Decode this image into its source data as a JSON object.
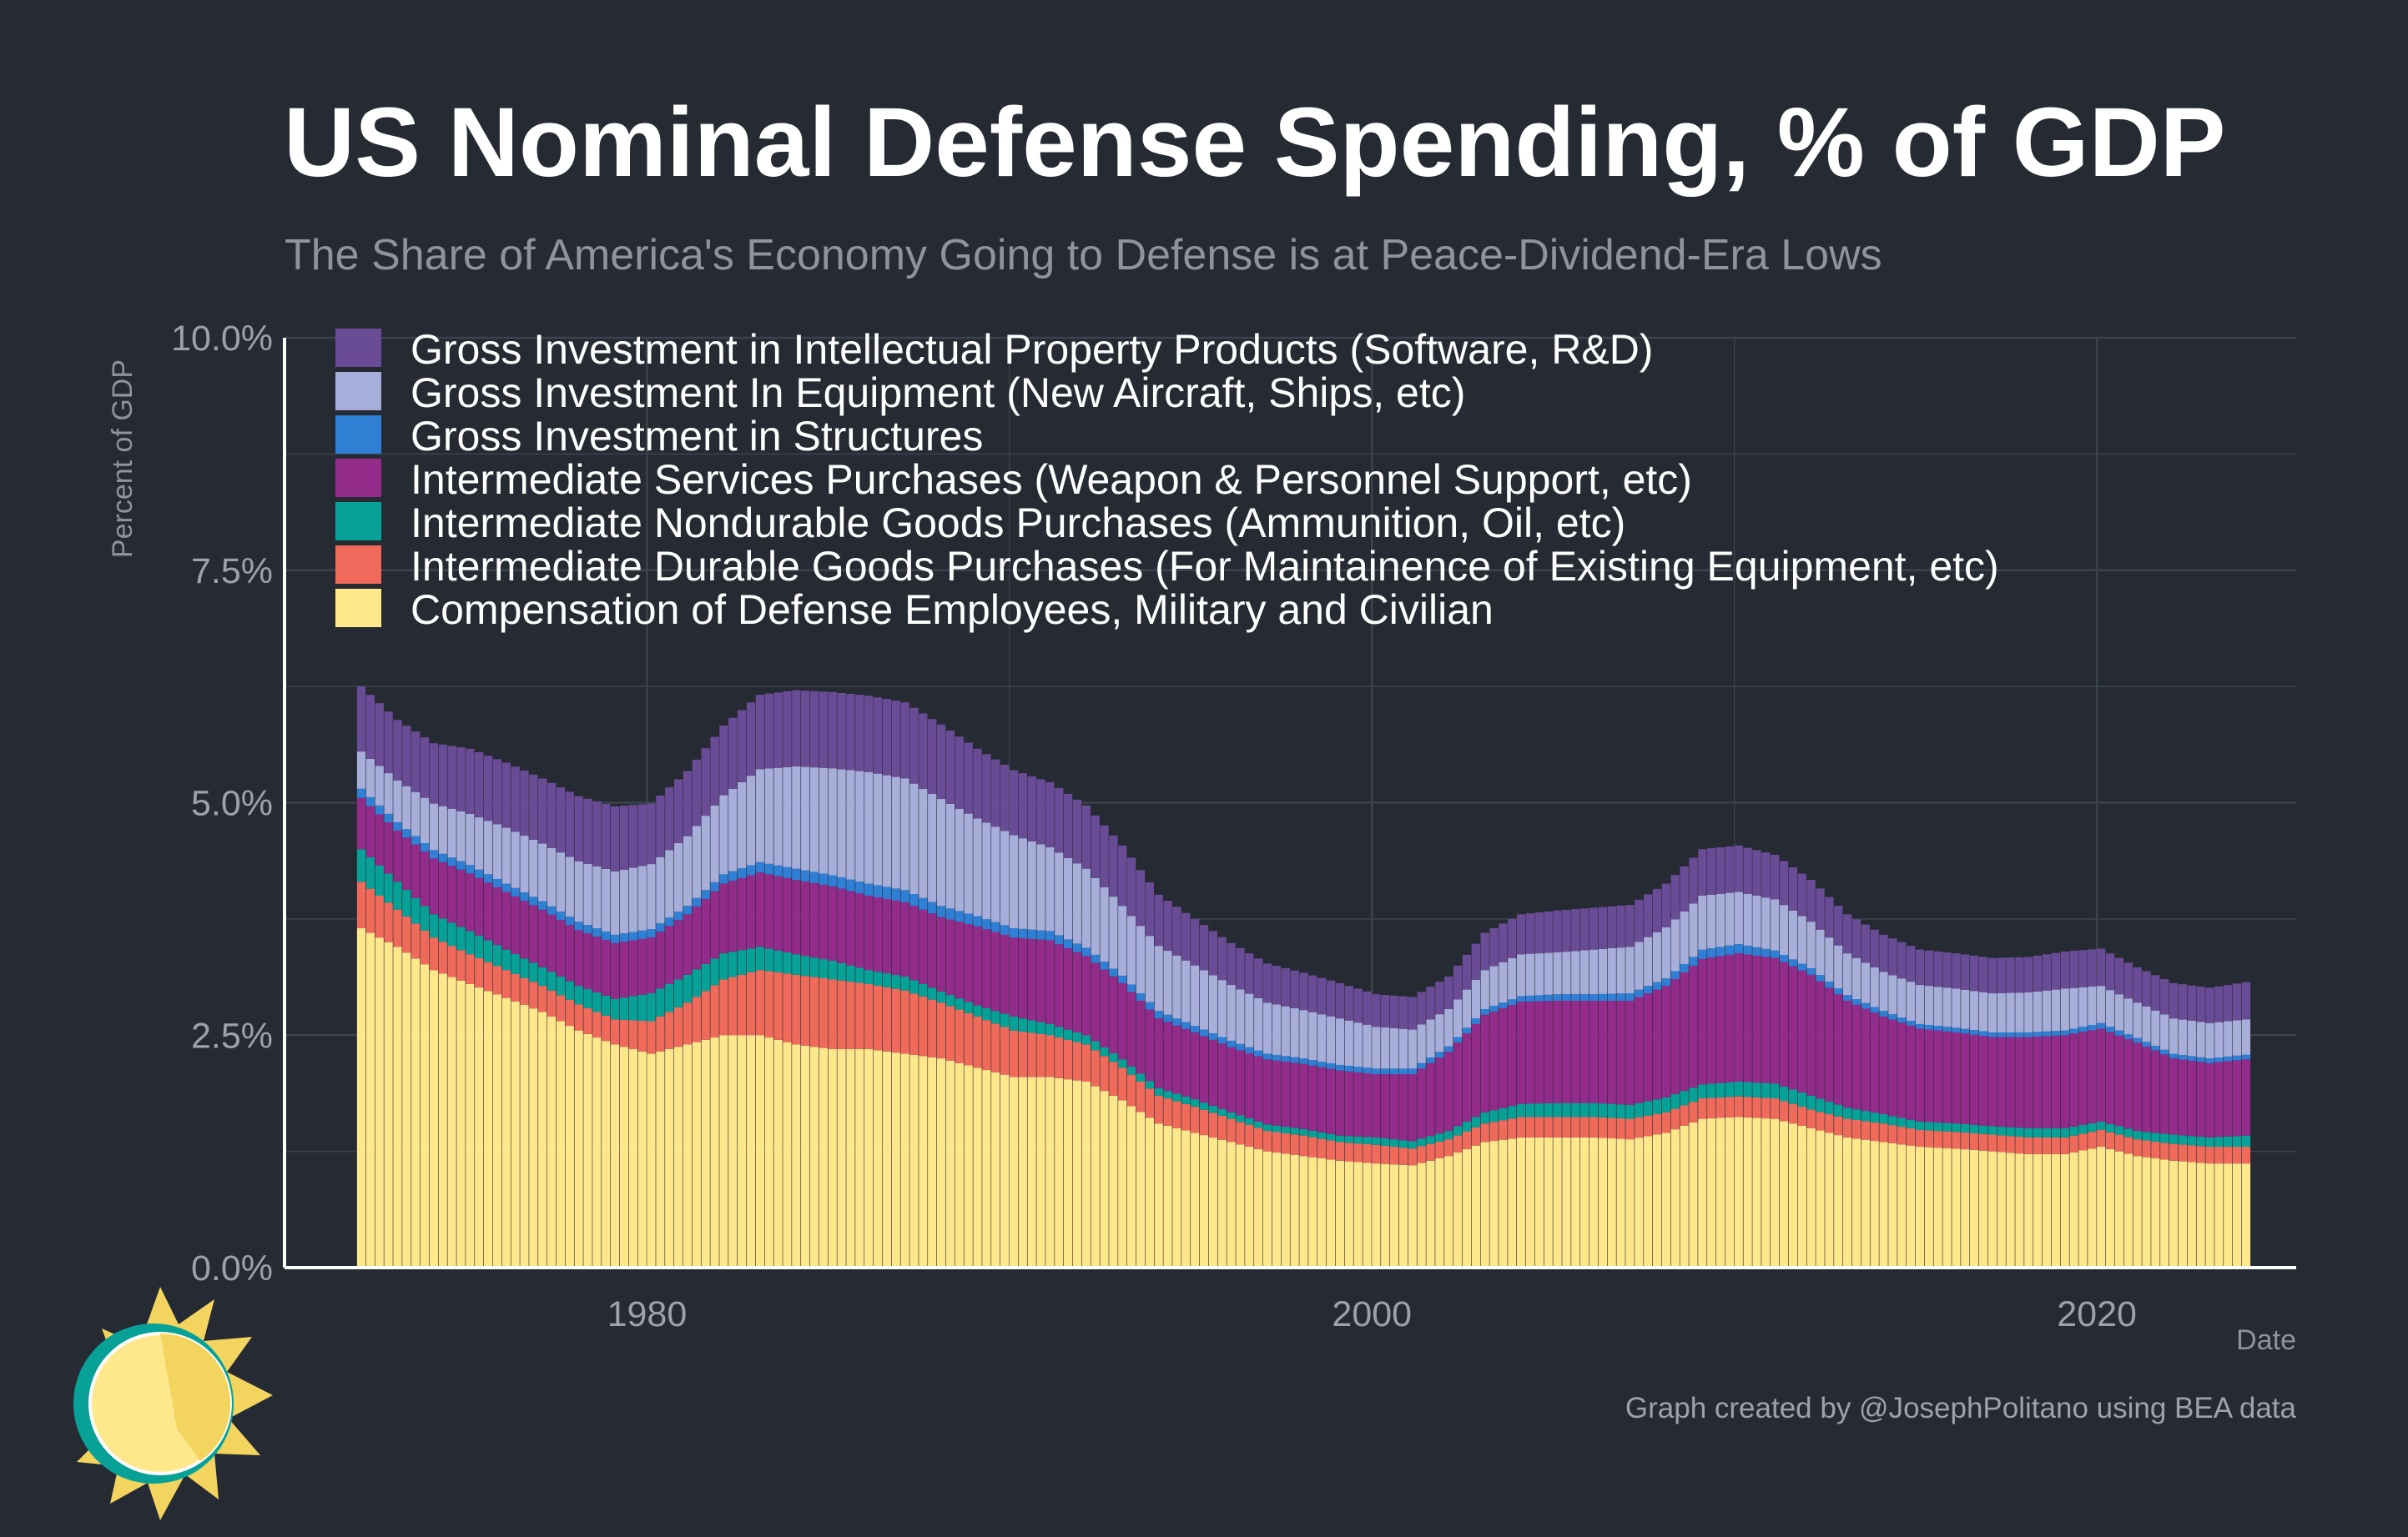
{
  "title": "US Nominal Defense Spending, % of GDP",
  "subtitle": "The Share of America's Economy Going to Defense is at Peace-Dividend-Era Lows",
  "caption": "Graph created by @JosephPolitano using BEA data",
  "chart_data": {
    "type": "area",
    "stacked": true,
    "ylabel": "Percent of GDP",
    "xlabel": "Date",
    "ylim": [
      0,
      10
    ],
    "xlim": [
      1970,
      2025.5
    ],
    "y_ticks": [
      "0.0%",
      "2.5%",
      "5.0%",
      "7.5%",
      "10.0%"
    ],
    "x_ticks": [
      "1980",
      "2000",
      "2020"
    ],
    "grid": true,
    "legend_position": "top-left",
    "x": [
      1972,
      1973,
      1974,
      1975,
      1976,
      1977,
      1978,
      1979,
      1980,
      1981,
      1982,
      1983,
      1984,
      1985,
      1986,
      1987,
      1988,
      1989,
      1990,
      1991,
      1992,
      1993,
      1994,
      1995,
      1996,
      1997,
      1998,
      1999,
      2000,
      2001,
      2002,
      2003,
      2004,
      2005,
      2006,
      2007,
      2008,
      2009,
      2010,
      2011,
      2012,
      2013,
      2014,
      2015,
      2016,
      2017,
      2018,
      2019,
      2020,
      2021,
      2022,
      2023,
      2024
    ],
    "series": [
      {
        "name": "Compensation of Defense Employees, Military and Civilian",
        "color": "#ffe78c",
        "values": [
          3.65,
          3.45,
          3.2,
          3.05,
          2.9,
          2.75,
          2.55,
          2.4,
          2.3,
          2.4,
          2.5,
          2.5,
          2.4,
          2.35,
          2.35,
          2.3,
          2.25,
          2.15,
          2.05,
          2.05,
          2.0,
          1.8,
          1.55,
          1.45,
          1.35,
          1.25,
          1.2,
          1.15,
          1.12,
          1.1,
          1.2,
          1.35,
          1.4,
          1.4,
          1.4,
          1.38,
          1.45,
          1.6,
          1.62,
          1.6,
          1.5,
          1.4,
          1.35,
          1.3,
          1.28,
          1.25,
          1.22,
          1.22,
          1.3,
          1.2,
          1.15,
          1.12,
          1.12
        ]
      },
      {
        "name": "Intermediate Durable Goods Purchases (For Maintainence of Existing Equipment, etc)",
        "color": "#ef6a5a",
        "values": [
          0.5,
          0.4,
          0.35,
          0.32,
          0.3,
          0.28,
          0.28,
          0.27,
          0.35,
          0.45,
          0.6,
          0.7,
          0.75,
          0.75,
          0.7,
          0.68,
          0.6,
          0.55,
          0.5,
          0.45,
          0.4,
          0.35,
          0.3,
          0.28,
          0.25,
          0.22,
          0.22,
          0.2,
          0.2,
          0.18,
          0.18,
          0.2,
          0.22,
          0.22,
          0.22,
          0.22,
          0.22,
          0.22,
          0.22,
          0.22,
          0.2,
          0.2,
          0.2,
          0.18,
          0.18,
          0.18,
          0.18,
          0.18,
          0.18,
          0.18,
          0.18,
          0.18,
          0.18
        ]
      },
      {
        "name": "Intermediate Nondurable Goods Purchases (Ammunition, Oil, etc)",
        "color": "#07a197",
        "values": [
          0.35,
          0.3,
          0.25,
          0.25,
          0.22,
          0.2,
          0.2,
          0.22,
          0.3,
          0.3,
          0.28,
          0.25,
          0.22,
          0.2,
          0.15,
          0.15,
          0.12,
          0.12,
          0.15,
          0.12,
          0.1,
          0.09,
          0.08,
          0.08,
          0.07,
          0.07,
          0.07,
          0.07,
          0.08,
          0.08,
          0.09,
          0.12,
          0.14,
          0.15,
          0.15,
          0.15,
          0.16,
          0.15,
          0.16,
          0.16,
          0.15,
          0.12,
          0.1,
          0.09,
          0.09,
          0.09,
          0.1,
          0.1,
          0.09,
          0.09,
          0.1,
          0.1,
          0.12
        ]
      },
      {
        "name": "Intermediate Services Purchases (Weapon & Personnel Support, etc)",
        "color": "#922b8a",
        "values": [
          0.55,
          0.55,
          0.6,
          0.62,
          0.62,
          0.62,
          0.6,
          0.6,
          0.6,
          0.65,
          0.75,
          0.8,
          0.8,
          0.8,
          0.8,
          0.8,
          0.8,
          0.85,
          0.85,
          0.9,
          0.85,
          0.82,
          0.75,
          0.72,
          0.7,
          0.7,
          0.7,
          0.7,
          0.68,
          0.72,
          0.85,
          1.05,
          1.1,
          1.1,
          1.1,
          1.12,
          1.2,
          1.35,
          1.38,
          1.35,
          1.3,
          1.15,
          1.05,
          1.0,
          0.98,
          0.96,
          0.98,
          1.0,
          1.0,
          0.95,
          0.82,
          0.8,
          0.82
        ]
      },
      {
        "name": "Gross Investment in Structures",
        "color": "#2f7fd5",
        "values": [
          0.1,
          0.09,
          0.09,
          0.09,
          0.09,
          0.09,
          0.09,
          0.09,
          0.09,
          0.09,
          0.1,
          0.11,
          0.12,
          0.12,
          0.13,
          0.13,
          0.12,
          0.11,
          0.1,
          0.1,
          0.09,
          0.08,
          0.08,
          0.07,
          0.07,
          0.06,
          0.06,
          0.06,
          0.06,
          0.06,
          0.06,
          0.06,
          0.06,
          0.07,
          0.07,
          0.08,
          0.08,
          0.1,
          0.1,
          0.08,
          0.07,
          0.06,
          0.06,
          0.05,
          0.05,
          0.05,
          0.05,
          0.05,
          0.06,
          0.05,
          0.05,
          0.05,
          0.05
        ]
      },
      {
        "name": "Gross Investment In Equipment (New Aircraft, Ships, etc)",
        "color": "#a6aed9",
        "values": [
          0.4,
          0.45,
          0.5,
          0.55,
          0.6,
          0.62,
          0.65,
          0.68,
          0.7,
          0.75,
          0.85,
          1.0,
          1.1,
          1.15,
          1.2,
          1.2,
          1.15,
          1.05,
          1.0,
          0.9,
          0.85,
          0.75,
          0.7,
          0.65,
          0.6,
          0.55,
          0.52,
          0.5,
          0.45,
          0.42,
          0.4,
          0.42,
          0.45,
          0.45,
          0.48,
          0.5,
          0.55,
          0.58,
          0.56,
          0.55,
          0.5,
          0.45,
          0.42,
          0.42,
          0.42,
          0.42,
          0.43,
          0.45,
          0.4,
          0.38,
          0.38,
          0.38,
          0.38
        ]
      },
      {
        "name": "Gross Investment in Intellectual Property Products (Software, R&D)",
        "color": "#6a4c96",
        "values": [
          0.7,
          0.65,
          0.65,
          0.7,
          0.7,
          0.7,
          0.7,
          0.7,
          0.65,
          0.7,
          0.75,
          0.8,
          0.82,
          0.82,
          0.82,
          0.82,
          0.8,
          0.75,
          0.7,
          0.7,
          0.68,
          0.65,
          0.55,
          0.5,
          0.45,
          0.42,
          0.4,
          0.38,
          0.35,
          0.35,
          0.35,
          0.4,
          0.43,
          0.45,
          0.45,
          0.45,
          0.47,
          0.5,
          0.5,
          0.48,
          0.45,
          0.42,
          0.4,
          0.38,
          0.38,
          0.38,
          0.38,
          0.4,
          0.4,
          0.38,
          0.38,
          0.38,
          0.4
        ]
      }
    ]
  },
  "legend_order": [
    6,
    5,
    4,
    3,
    2,
    1,
    0
  ],
  "logo": {
    "icon": "sun-logo-icon"
  }
}
